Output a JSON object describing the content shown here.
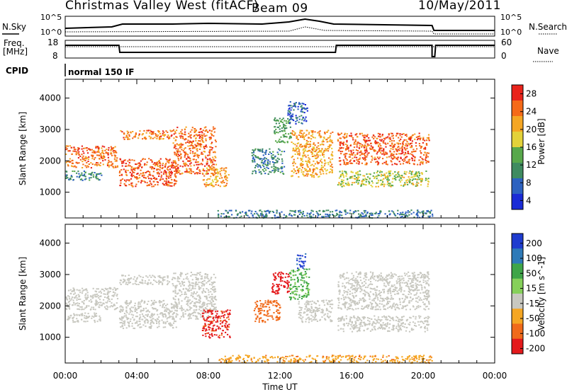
{
  "header": {
    "station": "Christmas Valley West (fitACF)",
    "beam": "Beam 09",
    "date": "10/May/2011"
  },
  "panels": {
    "nsky_label": "N.Sky",
    "nsearch_label": "N.Search",
    "nsky_ticks": [
      "10^5",
      "10^0"
    ],
    "freq_label_1": "Freq.",
    "freq_label_2": "[MHz]",
    "freq_ticks": [
      "18",
      "8"
    ],
    "nave_label": "Nave",
    "nave_ticks": [
      "60",
      "0"
    ],
    "cpid_label": "CPID",
    "cpid_value": "normal 150 IF"
  },
  "colors": {
    "power_scale": [
      "#1a2bd6",
      "#2d62c0",
      "#3f8b60",
      "#58a84b",
      "#e3d23a",
      "#f5a623",
      "#f56a18",
      "#e9231b"
    ],
    "velocity_scale": [
      "#1f3ccf",
      "#2e7ab8",
      "#3fa548",
      "#86d05a",
      "#c8c8c0",
      "#f5a623",
      "#f06a1a",
      "#e41a1c"
    ],
    "groundscatter": "#c8c8c0"
  },
  "chart_data": [
    {
      "type": "heatmap",
      "panel": "power",
      "ylabel": "Slant Range [km]",
      "yticks": [
        1000,
        2000,
        3000,
        4000
      ],
      "ylim": [
        180,
        4600
      ],
      "xlim": [
        0,
        24
      ],
      "colorbar_label": "Power [dB]",
      "colorbar_ticks": [
        "28",
        "24",
        "20",
        "16",
        "12",
        "8",
        "4"
      ],
      "scatter_regions": [
        {
          "t0": 0.0,
          "t1": 2.9,
          "r0": 1800,
          "r1": 2500,
          "v": 26
        },
        {
          "t0": 0.0,
          "t1": 2.0,
          "r0": 1400,
          "r1": 1700,
          "v": 10
        },
        {
          "t0": 3.0,
          "t1": 6.2,
          "r0": 1200,
          "r1": 2100,
          "v": 27
        },
        {
          "t0": 3.0,
          "t1": 6.0,
          "r0": 2700,
          "r1": 3000,
          "v": 25
        },
        {
          "t0": 6.0,
          "t1": 8.4,
          "r0": 1600,
          "r1": 3100,
          "v": 26
        },
        {
          "t0": 7.6,
          "t1": 9.1,
          "r0": 1200,
          "r1": 1800,
          "v": 22
        },
        {
          "t0": 10.4,
          "t1": 12.2,
          "r0": 1600,
          "r1": 2400,
          "v": 9
        },
        {
          "t0": 11.6,
          "t1": 12.6,
          "r0": 2600,
          "r1": 3400,
          "v": 12
        },
        {
          "t0": 12.6,
          "t1": 14.9,
          "r0": 1500,
          "r1": 3000,
          "v": 22
        },
        {
          "t0": 12.4,
          "t1": 13.5,
          "r0": 3200,
          "r1": 3900,
          "v": 6
        },
        {
          "t0": 15.2,
          "t1": 20.3,
          "r0": 1900,
          "r1": 2900,
          "v": 27
        },
        {
          "t0": 15.2,
          "t1": 20.3,
          "r0": 1200,
          "r1": 1700,
          "v": 17
        },
        {
          "t0": 8.5,
          "t1": 20.5,
          "r0": 200,
          "r1": 450,
          "v": 8
        }
      ]
    },
    {
      "type": "heatmap",
      "panel": "velocity",
      "ylabel": "Slant Range [km]",
      "xlabel": "Time UT",
      "yticks": [
        1000,
        2000,
        3000,
        4000
      ],
      "ylim": [
        180,
        4600
      ],
      "xlim": [
        0,
        24
      ],
      "xticks": [
        "00:00",
        "04:00",
        "08:00",
        "12:00",
        "16:00",
        "20:00",
        "00:00"
      ],
      "colorbar_label": "Velocity [m s^-1]",
      "colorbar_ticks": [
        "200",
        "100",
        "50",
        "15",
        "-15",
        "-50",
        "-100",
        "-200"
      ],
      "scatter_regions": [
        {
          "t0": 0.0,
          "t1": 2.9,
          "r0": 1900,
          "r1": 2600,
          "v": 0
        },
        {
          "t0": 0.0,
          "t1": 2.0,
          "r0": 1500,
          "r1": 1800,
          "v": 0
        },
        {
          "t0": 3.0,
          "t1": 6.2,
          "r0": 1300,
          "r1": 2200,
          "v": 0
        },
        {
          "t0": 3.0,
          "t1": 6.0,
          "r0": 2700,
          "r1": 3000,
          "v": 0
        },
        {
          "t0": 6.0,
          "t1": 8.4,
          "r0": 1600,
          "r1": 3100,
          "v": 0
        },
        {
          "t0": 7.6,
          "t1": 9.2,
          "r0": 1000,
          "r1": 1900,
          "v": -110
        },
        {
          "t0": 10.5,
          "t1": 12.0,
          "r0": 1500,
          "r1": 2200,
          "v": -70
        },
        {
          "t0": 11.5,
          "t1": 12.5,
          "r0": 2400,
          "r1": 3100,
          "v": -190
        },
        {
          "t0": 12.5,
          "t1": 13.6,
          "r0": 2200,
          "r1": 3200,
          "v": 55
        },
        {
          "t0": 13.0,
          "t1": 14.9,
          "r0": 1500,
          "r1": 2200,
          "v": 0
        },
        {
          "t0": 12.9,
          "t1": 13.4,
          "r0": 3200,
          "r1": 3700,
          "v": 210
        },
        {
          "t0": 15.2,
          "t1": 20.3,
          "r0": 1900,
          "r1": 3100,
          "v": 0
        },
        {
          "t0": 15.2,
          "t1": 20.3,
          "r0": 1200,
          "r1": 1700,
          "v": 0
        },
        {
          "t0": 8.5,
          "t1": 20.5,
          "r0": 200,
          "r1": 450,
          "v": -40
        }
      ]
    }
  ]
}
